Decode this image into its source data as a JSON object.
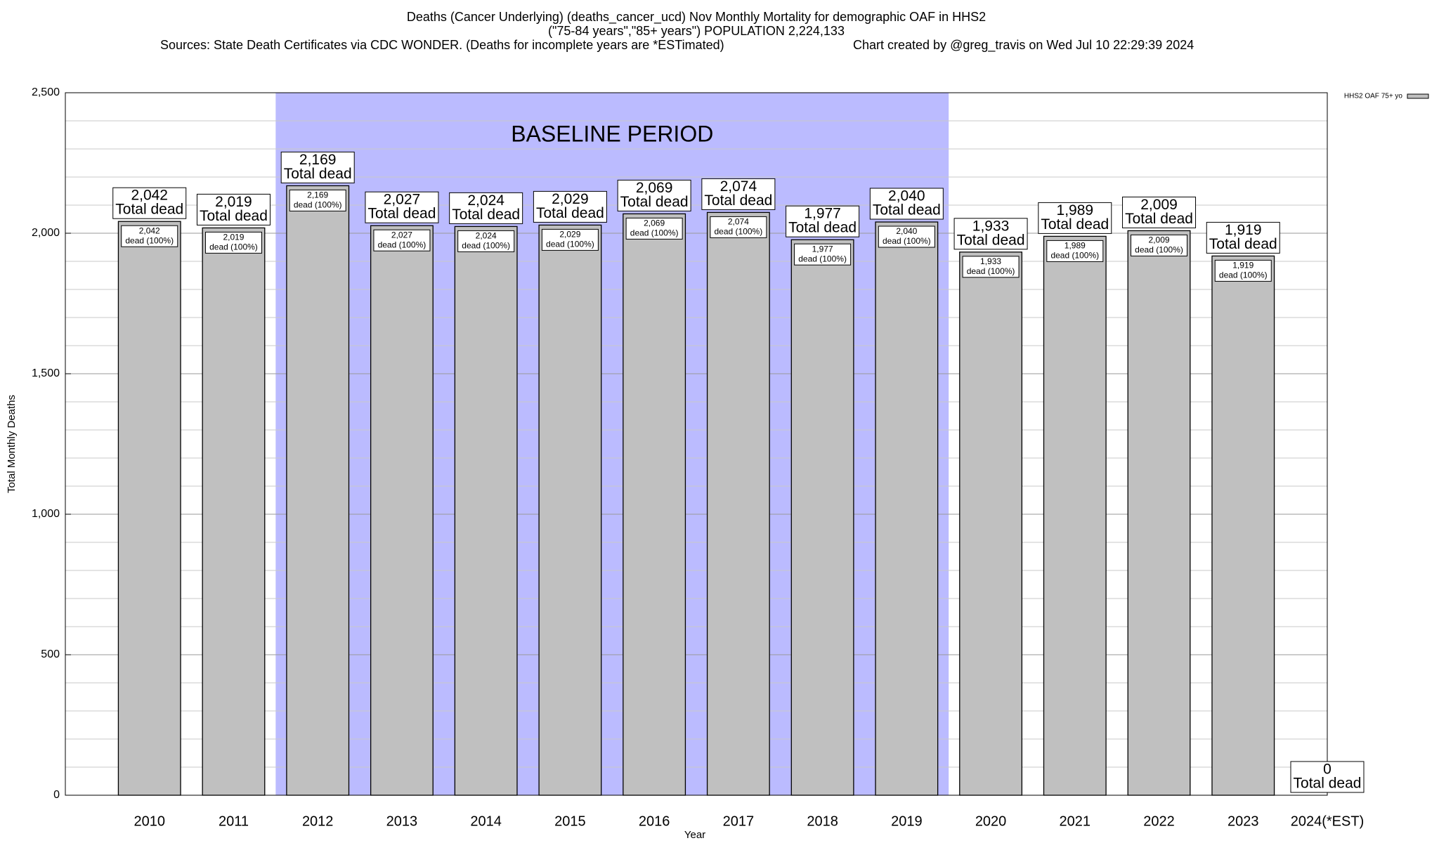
{
  "chart_data": {
    "type": "bar",
    "title": "Deaths (Cancer Underlying) (deaths_cancer_ucd) Nov Monthly Mortality for demographic OAF in HHS2",
    "subtitle": "(\"75-84 years\",\"85+ years\") POPULATION 2,224,133",
    "sources": "Sources: State Death Certificates via CDC WONDER. (Deaths for incomplete years are *ESTimated)",
    "credit": "Chart created by @greg_travis on Wed Jul 10 22:29:39 2024",
    "x_label": "Year",
    "y_label": "Total Monthly Deaths",
    "categories": [
      "2010",
      "2011",
      "2012",
      "2013",
      "2014",
      "2015",
      "2016",
      "2017",
      "2018",
      "2019",
      "2020",
      "2021",
      "2022",
      "2023",
      "2024(*EST)"
    ],
    "series": [
      {
        "name": "HHS2 OAF 75+ yo",
        "color": "#c0c0c0",
        "values": [
          2042,
          2019,
          2169,
          2027,
          2024,
          2029,
          2069,
          2074,
          1977,
          2040,
          1933,
          1989,
          2009,
          1919,
          0
        ],
        "value_labels": [
          "2,042",
          "2,019",
          "2,169",
          "2,027",
          "2,024",
          "2,029",
          "2,069",
          "2,074",
          "1,977",
          "2,040",
          "1,933",
          "1,989",
          "2,009",
          "1,919",
          "0"
        ]
      }
    ],
    "total_label": "Total dead",
    "share_label": "dead (100%)",
    "shaded_range": {
      "label": "BASELINE PERIOD",
      "from": "2012",
      "to": "2019",
      "color": "#bbbbff"
    },
    "ylim": [
      0,
      2500
    ],
    "yticks": [
      0,
      500,
      {
        "value": 1000,
        "label": "1,000"
      },
      {
        "value": 1500,
        "label": "1,500"
      },
      {
        "value": 2000,
        "label": "2,000"
      },
      {
        "value": 2500,
        "label": "2,500"
      }
    ],
    "minor_yticks": [
      100,
      200,
      300,
      400,
      600,
      700,
      800,
      900,
      1100,
      1200,
      1300,
      1400,
      1600,
      1700,
      1800,
      1900,
      2100,
      2200,
      2300,
      2400
    ],
    "grid": true,
    "legend": "top-right"
  }
}
